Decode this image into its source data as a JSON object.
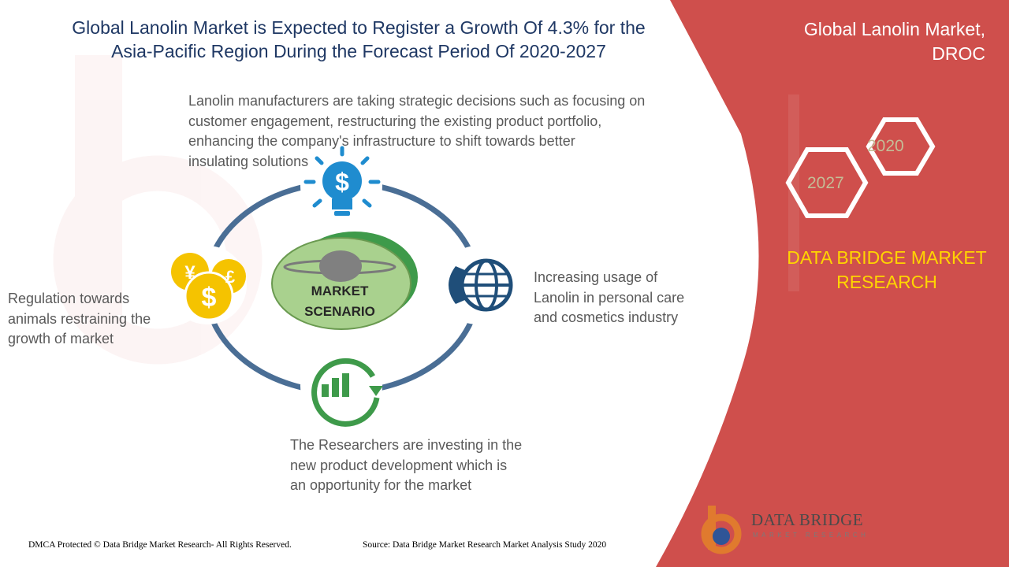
{
  "header": {
    "title_line1": "Global Lanolin Market is Expected to Register a Growth Of 4.3% for the",
    "title_line2": "Asia-Pacific Region During the Forecast Period Of 2020-2027"
  },
  "side_panel": {
    "title_line1": "Global Lanolin Market,",
    "title_line2": "DROC",
    "year_start": "2020",
    "year_end": "2027",
    "brand_line1": "DATA BRIDGE MARKET",
    "brand_line2": "RESEARCH"
  },
  "diagram": {
    "center_line1": "MARKET",
    "center_line2": "SCENARIO",
    "nodes": {
      "top": {
        "icon": "lightbulb-dollar-icon",
        "text_lines": [
          "Lanolin manufacturers  are taking strategic decisions such as focusing on",
          "customer engagement, restructuring the existing product portfolio,",
          "enhancing the company's infrastructure to shift towards better",
          "insulating solutions"
        ]
      },
      "right": {
        "icon": "globe-phone-icon",
        "text_lines": [
          "Increasing usage of",
          "Lanolin in personal care",
          "and cosmetics industry"
        ]
      },
      "left": {
        "icon": "currency-coins-icon",
        "text_lines": [
          "Regulation towards",
          "animals restraining the",
          "growth of market"
        ]
      },
      "bottom": {
        "icon": "growth-chart-icon",
        "text_lines": [
          "The Researchers are investing in the",
          "new product development  which is",
          "an opportunity  for the market"
        ]
      }
    }
  },
  "footer": {
    "copyright": "DMCA Protected © Data Bridge Market Research- All Rights Reserved.",
    "source": "Source: Data Bridge Market Research Market Analysis Study 2020"
  },
  "logo": {
    "name": "DATA BRIDGE",
    "sub": "MARKET RESEARCH"
  },
  "colors": {
    "panel_red": "#cf4f4c",
    "title_navy": "#1f3864",
    "ring_blue": "#4a6e95",
    "accent_green": "#3e9a4a",
    "icon_blue": "#1f8ccf",
    "icon_navy": "#1f4e79",
    "coin_yellow": "#f5c300",
    "brand_yellow": "#ffd500"
  }
}
